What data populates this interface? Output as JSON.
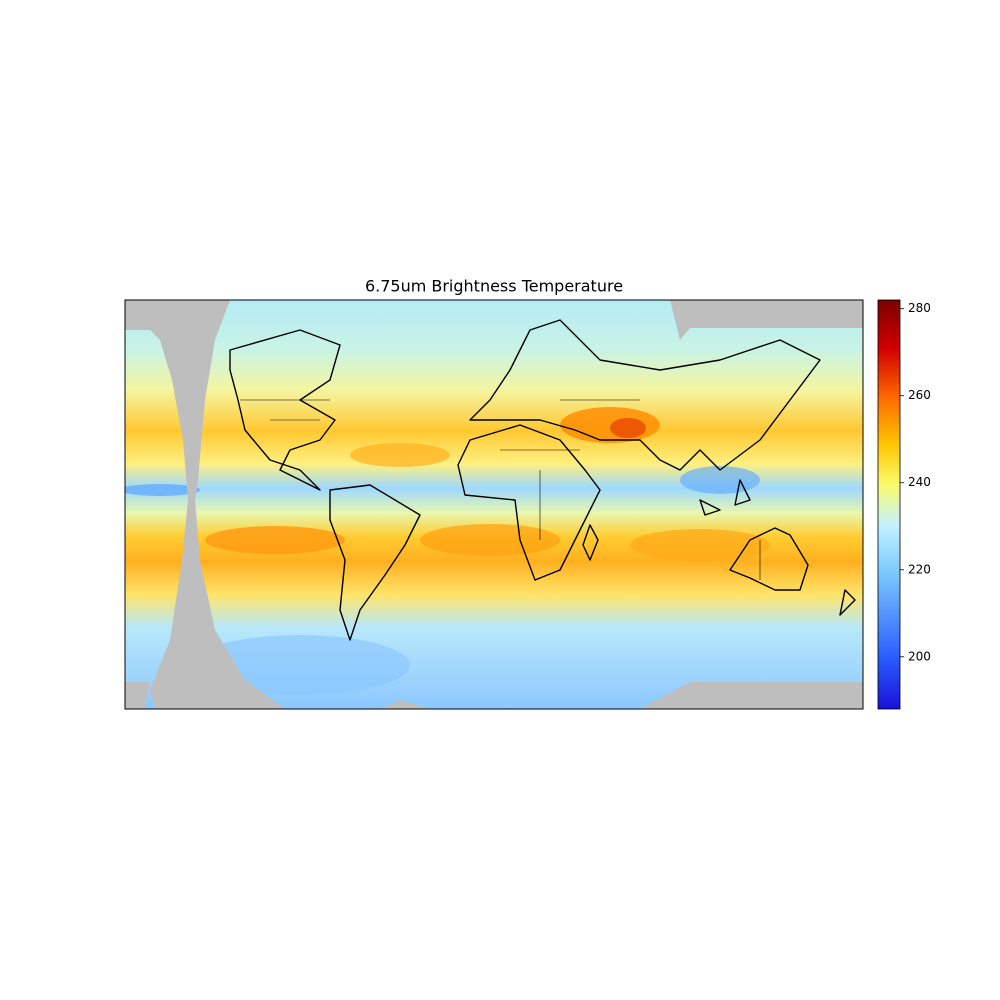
{
  "title": "6.75um Brightness Temperature",
  "colorbar": {
    "lim": [
      188,
      282
    ],
    "ticks": [
      200,
      220,
      240,
      260,
      280
    ]
  }
}
